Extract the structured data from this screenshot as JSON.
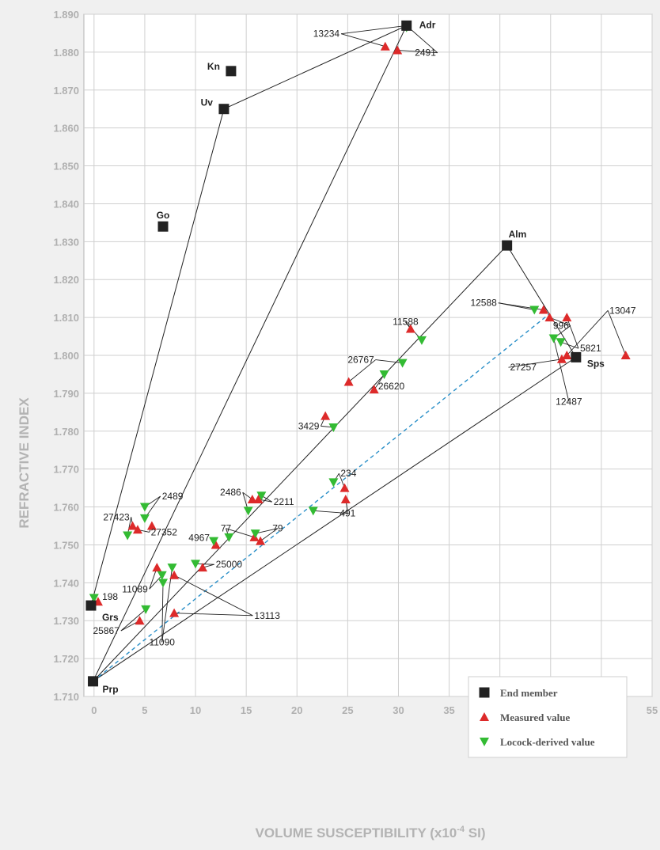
{
  "chart_data": {
    "type": "scatter",
    "xlabel": "VOLUME SUSCEPTIBILITY (x10",
    "xlabel_sup": "-4",
    "xlabel_suffix": " SI)",
    "ylabel": "REFRACTIVE INDEX",
    "xlim": [
      -1,
      55
    ],
    "ylim": [
      1.71,
      1.89
    ],
    "xticks": [
      "0",
      "5",
      "10",
      "15",
      "20",
      "25",
      "30",
      "35",
      "40",
      "45",
      "50",
      "55"
    ],
    "yticks": [
      "1.710",
      "1.720",
      "1.730",
      "1.740",
      "1.750",
      "1.760",
      "1.770",
      "1.780",
      "1.790",
      "1.800",
      "1.810",
      "1.820",
      "1.830",
      "1.840",
      "1.850",
      "1.860",
      "1.870",
      "1.880",
      "1.890"
    ],
    "grid": true,
    "legend_position": "bottom-right",
    "colors": {
      "end": "#222222",
      "measured": "#dd2a2a",
      "locock": "#33bb33",
      "dashed": "#2a8fc8"
    },
    "series": [
      {
        "name": "End member",
        "marker": "square",
        "points": [
          {
            "label": "Adr",
            "x": 30.8,
            "y": 1.887
          },
          {
            "label": "Kn",
            "x": 13.5,
            "y": 1.875
          },
          {
            "label": "Uv",
            "x": 12.8,
            "y": 1.865
          },
          {
            "label": "Go",
            "x": 6.8,
            "y": 1.834
          },
          {
            "label": "Alm",
            "x": 40.7,
            "y": 1.829
          },
          {
            "label": "Sps",
            "x": 47.5,
            "y": 1.7995
          },
          {
            "label": "Grs",
            "x": -0.3,
            "y": 1.734
          },
          {
            "label": "Prp",
            "x": -0.1,
            "y": 1.714
          }
        ]
      },
      {
        "name": "Measured value",
        "marker": "triangle-up",
        "points": [
          {
            "x": 28.7,
            "y": 1.8815
          },
          {
            "x": 29.9,
            "y": 1.8805
          },
          {
            "x": 44.3,
            "y": 1.812
          },
          {
            "x": 44.9,
            "y": 1.81
          },
          {
            "x": 46.6,
            "y": 1.81
          },
          {
            "x": 52.4,
            "y": 1.8
          },
          {
            "x": 46.6,
            "y": 1.8
          },
          {
            "x": 46.1,
            "y": 1.799
          },
          {
            "x": 31.2,
            "y": 1.807
          },
          {
            "x": 25.1,
            "y": 1.793
          },
          {
            "x": 27.6,
            "y": 1.791
          },
          {
            "x": 22.8,
            "y": 1.784
          },
          {
            "x": 24.7,
            "y": 1.765
          },
          {
            "x": 24.8,
            "y": 1.762
          },
          {
            "x": 15.6,
            "y": 1.762
          },
          {
            "x": 16.2,
            "y": 1.762
          },
          {
            "x": 15.8,
            "y": 1.752
          },
          {
            "x": 16.4,
            "y": 1.751
          },
          {
            "x": 12.0,
            "y": 1.75
          },
          {
            "x": 10.7,
            "y": 1.744
          },
          {
            "x": 3.8,
            "y": 1.755
          },
          {
            "x": 4.3,
            "y": 1.754
          },
          {
            "x": 5.7,
            "y": 1.755
          },
          {
            "x": 6.2,
            "y": 1.744
          },
          {
            "x": 7.9,
            "y": 1.742
          },
          {
            "x": 7.9,
            "y": 1.732
          },
          {
            "x": 4.5,
            "y": 1.73
          },
          {
            "x": 0.4,
            "y": 1.735
          }
        ]
      },
      {
        "name": "Locock-derived value",
        "marker": "triangle-down",
        "points": [
          {
            "x": 30.8,
            "y": 1.8865
          },
          {
            "x": 43.4,
            "y": 1.812
          },
          {
            "x": 45.3,
            "y": 1.8045
          },
          {
            "x": 46.0,
            "y": 1.8035
          },
          {
            "x": 32.3,
            "y": 1.804
          },
          {
            "x": 30.4,
            "y": 1.798
          },
          {
            "x": 28.6,
            "y": 1.795
          },
          {
            "x": 23.6,
            "y": 1.781
          },
          {
            "x": 23.6,
            "y": 1.7665
          },
          {
            "x": 21.6,
            "y": 1.759
          },
          {
            "x": 16.5,
            "y": 1.763
          },
          {
            "x": 15.2,
            "y": 1.759
          },
          {
            "x": 15.9,
            "y": 1.753
          },
          {
            "x": 13.3,
            "y": 1.752
          },
          {
            "x": 11.8,
            "y": 1.751
          },
          {
            "x": 10.0,
            "y": 1.745
          },
          {
            "x": 5.0,
            "y": 1.76
          },
          {
            "x": 5.0,
            "y": 1.757
          },
          {
            "x": 3.3,
            "y": 1.7525
          },
          {
            "x": 7.7,
            "y": 1.744
          },
          {
            "x": 6.7,
            "y": 1.742
          },
          {
            "x": 6.8,
            "y": 1.74
          },
          {
            "x": 5.1,
            "y": 1.733
          },
          {
            "x": 0.0,
            "y": 1.736
          }
        ]
      }
    ],
    "tie_lines": [
      [
        [
          -0.3,
          1.734
        ],
        [
          12.8,
          1.865
        ]
      ],
      [
        [
          12.8,
          1.865
        ],
        [
          30.8,
          1.887
        ]
      ],
      [
        [
          -0.1,
          1.714
        ],
        [
          30.8,
          1.887
        ]
      ],
      [
        [
          -0.1,
          1.714
        ],
        [
          40.7,
          1.829
        ]
      ],
      [
        [
          40.7,
          1.829
        ],
        [
          47.5,
          1.7995
        ]
      ],
      [
        [
          -0.1,
          1.714
        ],
        [
          47.5,
          1.7995
        ]
      ]
    ],
    "dashed_lines": [
      [
        [
          -0.1,
          1.714
        ],
        [
          44.9,
          1.811
        ]
      ]
    ],
    "annotations": [
      {
        "text": "13234",
        "x": 24.2,
        "y": 1.884,
        "anchor": "end",
        "pointers": [
          [
            28.7,
            1.8815
          ],
          [
            30.8,
            1.887
          ]
        ]
      },
      {
        "text": "2491",
        "x": 33.7,
        "y": 1.879,
        "anchor": "end",
        "pointers": [
          [
            29.9,
            1.8805
          ],
          [
            30.8,
            1.887
          ]
        ]
      },
      {
        "text": "12588",
        "x": 39.7,
        "y": 1.813,
        "anchor": "end",
        "pointers": [
          [
            43.4,
            1.812
          ],
          [
            44.3,
            1.812
          ]
        ]
      },
      {
        "text": "996",
        "x": 46.8,
        "y": 1.807,
        "anchor": "end",
        "pointers": [
          [
            44.9,
            1.81
          ],
          [
            45.3,
            1.8045
          ]
        ]
      },
      {
        "text": "5821",
        "x": 47.9,
        "y": 1.801,
        "anchor": "start",
        "pointers": [
          [
            46.6,
            1.81
          ],
          [
            46.0,
            1.8035
          ]
        ]
      },
      {
        "text": "13047",
        "x": 50.8,
        "y": 1.811,
        "anchor": "start",
        "pointers": [
          [
            46.6,
            1.8
          ],
          [
            52.4,
            1.8
          ]
        ]
      },
      {
        "text": "27257",
        "x": 41.0,
        "y": 1.796,
        "anchor": "start",
        "pointers": [
          [
            46.1,
            1.799
          ]
        ]
      },
      {
        "text": "12487",
        "x": 46.8,
        "y": 1.787,
        "anchor": "middle",
        "pointers": [
          [
            45.3,
            1.8045
          ]
        ]
      },
      {
        "text": "11588",
        "x": 30.7,
        "y": 1.808,
        "anchor": "middle",
        "pointers": [
          [
            31.2,
            1.807
          ],
          [
            32.3,
            1.804
          ]
        ]
      },
      {
        "text": "26767",
        "x": 27.6,
        "y": 1.798,
        "anchor": "end",
        "pointers": [
          [
            25.1,
            1.793
          ],
          [
            30.4,
            1.798
          ]
        ]
      },
      {
        "text": "26620",
        "x": 28.0,
        "y": 1.791,
        "anchor": "start",
        "pointers": [
          [
            27.6,
            1.791
          ],
          [
            28.6,
            1.795
          ]
        ]
      },
      {
        "text": "3429",
        "x": 22.2,
        "y": 1.7805,
        "anchor": "end",
        "pointers": [
          [
            22.8,
            1.784
          ],
          [
            23.6,
            1.781
          ]
        ]
      },
      {
        "text": "234",
        "x": 24.3,
        "y": 1.768,
        "anchor": "start",
        "pointers": [
          [
            24.7,
            1.765
          ],
          [
            23.6,
            1.7665
          ]
        ]
      },
      {
        "text": "491",
        "x": 25.0,
        "y": 1.7575,
        "anchor": "middle",
        "pointers": [
          [
            21.6,
            1.759
          ],
          [
            24.8,
            1.762
          ]
        ]
      },
      {
        "text": "2486",
        "x": 14.5,
        "y": 1.763,
        "anchor": "end",
        "pointers": [
          [
            15.6,
            1.762
          ],
          [
            15.2,
            1.759
          ]
        ]
      },
      {
        "text": "2211",
        "x": 17.7,
        "y": 1.7605,
        "anchor": "start",
        "pointers": [
          [
            16.2,
            1.762
          ],
          [
            16.5,
            1.763
          ]
        ]
      },
      {
        "text": "77",
        "x": 13.0,
        "y": 1.7535,
        "anchor": "middle",
        "pointers": [
          [
            13.3,
            1.752
          ],
          [
            15.8,
            1.752
          ]
        ]
      },
      {
        "text": "79",
        "x": 18.1,
        "y": 1.7535,
        "anchor": "middle",
        "pointers": [
          [
            15.9,
            1.753
          ],
          [
            16.4,
            1.751
          ]
        ]
      },
      {
        "text": "4967",
        "x": 11.4,
        "y": 1.751,
        "anchor": "end",
        "pointers": [
          [
            11.8,
            1.751
          ],
          [
            12.0,
            1.75
          ]
        ]
      },
      {
        "text": "25000",
        "x": 12.0,
        "y": 1.744,
        "anchor": "start",
        "pointers": [
          [
            10.7,
            1.744
          ],
          [
            10.0,
            1.745
          ]
        ]
      },
      {
        "text": "13113",
        "x": 15.8,
        "y": 1.7305,
        "anchor": "start",
        "pointers": [
          [
            7.9,
            1.742
          ],
          [
            7.9,
            1.732
          ]
        ]
      },
      {
        "text": "2489",
        "x": 6.7,
        "y": 1.762,
        "anchor": "start",
        "pointers": [
          [
            5.0,
            1.76
          ],
          [
            5.0,
            1.757
          ]
        ]
      },
      {
        "text": "27423",
        "x": 3.5,
        "y": 1.7565,
        "anchor": "end",
        "pointers": [
          [
            3.8,
            1.755
          ],
          [
            3.3,
            1.7525
          ]
        ]
      },
      {
        "text": "27352",
        "x": 5.6,
        "y": 1.7525,
        "anchor": "start",
        "pointers": [
          [
            4.3,
            1.754
          ],
          [
            5.7,
            1.755
          ]
        ]
      },
      {
        "text": "11089",
        "x": 5.3,
        "y": 1.7375,
        "anchor": "end",
        "pointers": [
          [
            6.2,
            1.744
          ],
          [
            6.7,
            1.742
          ]
        ]
      },
      {
        "text": "25867",
        "x": 2.5,
        "y": 1.7265,
        "anchor": "end",
        "pointers": [
          [
            4.5,
            1.73
          ],
          [
            5.1,
            1.733
          ]
        ]
      },
      {
        "text": "11090",
        "x": 6.7,
        "y": 1.7235,
        "anchor": "middle",
        "pointers": [
          [
            6.8,
            1.74
          ],
          [
            7.7,
            1.744
          ]
        ]
      },
      {
        "text": "198",
        "x": 0.8,
        "y": 1.7355,
        "anchor": "start",
        "pointers": []
      }
    ]
  }
}
